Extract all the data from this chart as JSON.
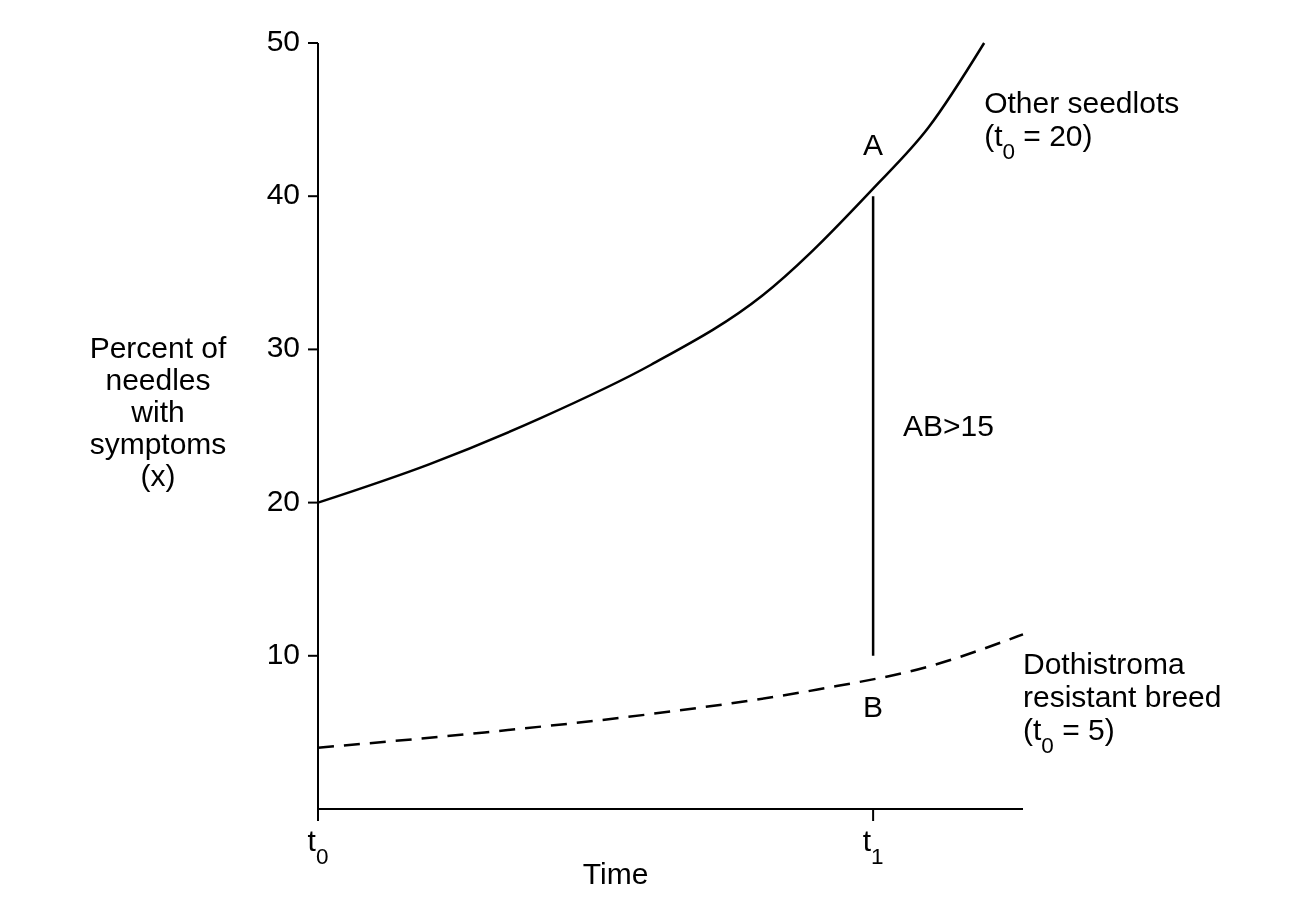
{
  "chart_data": {
    "type": "line",
    "xlabel": "Time",
    "ylabel": "Percent of needles with symptoms (x)",
    "xlim": [
      0,
      1.27
    ],
    "xticks": [
      {
        "value": 0,
        "label": "t$_{0}$"
      },
      {
        "value": 1,
        "label": "t$_{1}$"
      }
    ],
    "ylim": [
      0,
      50
    ],
    "yticks": [
      10,
      20,
      30,
      40,
      50
    ],
    "grid": false,
    "series": [
      {
        "name": "Other seedlots (t$_{0}$ = 20)",
        "color": "#000000",
        "line_style": "solid",
        "x": [
          0,
          0.2,
          0.4,
          0.6,
          0.8,
          1.0,
          1.1,
          1.2
        ],
        "values": [
          20,
          22.5,
          25.5,
          29,
          33.5,
          40.5,
          44.5,
          50
        ]
      },
      {
        "name": "Dothistroma resistant breed (t$_{0}$ = 5)",
        "color": "#000000",
        "line_style": "dashed",
        "x": [
          0,
          0.3,
          0.6,
          0.9,
          1.1,
          1.27
        ],
        "values": [
          4,
          5,
          6.2,
          7.8,
          9.3,
          11.4
        ]
      },
      {
        "color": "#000000",
        "line_style": "solid",
        "x": [
          1,
          1
        ],
        "values": [
          10,
          40
        ]
      }
    ],
    "annotations": [
      {
        "text": "A",
        "x": 1,
        "y": 40.5
      },
      {
        "text": "B",
        "x": 1,
        "y": 8.5
      },
      "AB>15"
    ]
  }
}
